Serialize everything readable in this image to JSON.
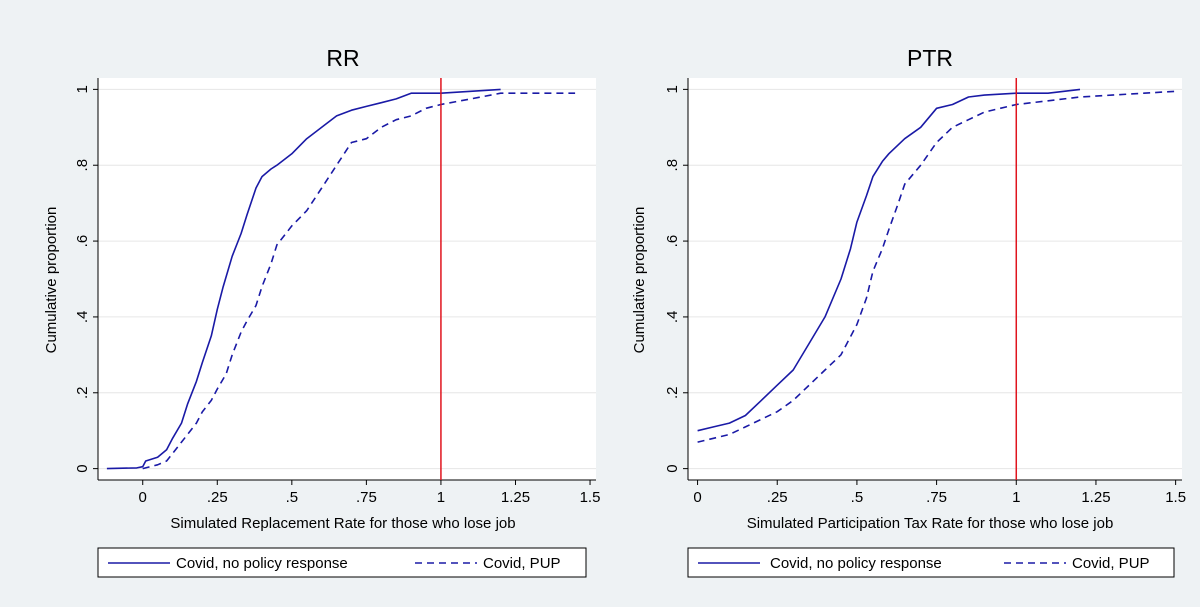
{
  "colors": {
    "outer_bg": "#eef2f4",
    "plot_bg": "#ffffff",
    "series_color": "#1a1aa6",
    "refline_color": "#e0141e",
    "grid_color": "#e6e6e6"
  },
  "legend_style": {
    "solid": "solid",
    "dashed": "dashed"
  },
  "chart_data": [
    {
      "type": "line",
      "title": "RR",
      "xlabel": "Simulated Replacement Rate for those who lose job",
      "ylabel": "Cumulative proportion",
      "xlim": [
        -0.15,
        1.52
      ],
      "ylim": [
        -0.03,
        1.03
      ],
      "xticks": [
        0,
        0.25,
        0.5,
        0.75,
        1,
        1.25,
        1.5
      ],
      "xtick_labels": [
        "0",
        ".25",
        ".5",
        ".75",
        "1",
        "1.25",
        "1.5"
      ],
      "yticks": [
        0,
        0.2,
        0.4,
        0.6,
        0.8,
        1
      ],
      "ytick_labels": [
        "0",
        ".2",
        ".4",
        ".6",
        ".8",
        "1"
      ],
      "grid": true,
      "legend_position": "bottom",
      "reference_line_x": 1,
      "series": [
        {
          "name": "Covid, no policy response",
          "style": "solid",
          "x": [
            -0.12,
            -0.02,
            0,
            0.01,
            0.05,
            0.08,
            0.1,
            0.13,
            0.15,
            0.18,
            0.2,
            0.23,
            0.25,
            0.27,
            0.3,
            0.33,
            0.35,
            0.38,
            0.4,
            0.43,
            0.45,
            0.5,
            0.55,
            0.6,
            0.65,
            0.7,
            0.75,
            0.8,
            0.85,
            0.9,
            1.0,
            1.1,
            1.2
          ],
          "y": [
            0,
            0.002,
            0.005,
            0.02,
            0.03,
            0.05,
            0.08,
            0.12,
            0.17,
            0.23,
            0.28,
            0.35,
            0.42,
            0.48,
            0.56,
            0.62,
            0.67,
            0.74,
            0.77,
            0.79,
            0.8,
            0.83,
            0.87,
            0.9,
            0.93,
            0.945,
            0.955,
            0.965,
            0.975,
            0.99,
            0.99,
            0.995,
            1.0
          ]
        },
        {
          "name": "Covid, PUP",
          "style": "dashed",
          "x": [
            0,
            0.05,
            0.08,
            0.1,
            0.13,
            0.15,
            0.18,
            0.2,
            0.23,
            0.25,
            0.28,
            0.3,
            0.33,
            0.35,
            0.38,
            0.4,
            0.43,
            0.45,
            0.48,
            0.5,
            0.55,
            0.6,
            0.65,
            0.7,
            0.75,
            0.8,
            0.85,
            0.9,
            0.95,
            1.0,
            1.1,
            1.2,
            1.3,
            1.45
          ],
          "y": [
            0,
            0.01,
            0.02,
            0.04,
            0.07,
            0.09,
            0.12,
            0.15,
            0.18,
            0.21,
            0.25,
            0.3,
            0.36,
            0.39,
            0.43,
            0.48,
            0.54,
            0.59,
            0.62,
            0.64,
            0.68,
            0.74,
            0.8,
            0.86,
            0.87,
            0.9,
            0.92,
            0.93,
            0.95,
            0.96,
            0.975,
            0.99,
            0.99,
            0.99
          ]
        }
      ]
    },
    {
      "type": "line",
      "title": "PTR",
      "xlabel": "Simulated Participation Tax Rate for those who lose job",
      "ylabel": "Cumulative proportion",
      "xlim": [
        -0.03,
        1.52
      ],
      "ylim": [
        -0.03,
        1.03
      ],
      "xticks": [
        0,
        0.25,
        0.5,
        0.75,
        1,
        1.25,
        1.5
      ],
      "xtick_labels": [
        "0",
        ".25",
        ".5",
        ".75",
        "1",
        "1.25",
        "1.5"
      ],
      "yticks": [
        0,
        0.2,
        0.4,
        0.6,
        0.8,
        1
      ],
      "ytick_labels": [
        "0",
        ".2",
        ".4",
        ".6",
        ".8",
        "1"
      ],
      "grid": true,
      "legend_position": "bottom",
      "reference_line_x": 1,
      "series": [
        {
          "name": "Covid, no policy response",
          "style": "solid",
          "x": [
            0,
            0.05,
            0.1,
            0.15,
            0.2,
            0.25,
            0.3,
            0.35,
            0.4,
            0.45,
            0.48,
            0.5,
            0.53,
            0.55,
            0.58,
            0.6,
            0.65,
            0.7,
            0.75,
            0.8,
            0.85,
            0.9,
            1.0,
            1.1,
            1.2
          ],
          "y": [
            0.1,
            0.11,
            0.12,
            0.14,
            0.18,
            0.22,
            0.26,
            0.33,
            0.4,
            0.5,
            0.58,
            0.65,
            0.72,
            0.77,
            0.81,
            0.83,
            0.87,
            0.9,
            0.95,
            0.96,
            0.98,
            0.985,
            0.99,
            0.99,
            1.0
          ]
        },
        {
          "name": "Covid, PUP",
          "style": "dashed",
          "x": [
            0,
            0.05,
            0.1,
            0.15,
            0.2,
            0.25,
            0.3,
            0.35,
            0.4,
            0.45,
            0.5,
            0.53,
            0.55,
            0.58,
            0.6,
            0.63,
            0.65,
            0.7,
            0.75,
            0.8,
            0.85,
            0.9,
            0.95,
            1.0,
            1.1,
            1.2,
            1.3,
            1.4,
            1.5
          ],
          "y": [
            0.07,
            0.08,
            0.09,
            0.11,
            0.13,
            0.15,
            0.18,
            0.22,
            0.26,
            0.3,
            0.38,
            0.45,
            0.52,
            0.58,
            0.63,
            0.7,
            0.75,
            0.8,
            0.86,
            0.9,
            0.92,
            0.94,
            0.95,
            0.96,
            0.97,
            0.98,
            0.985,
            0.99,
            0.995
          ]
        }
      ]
    }
  ]
}
